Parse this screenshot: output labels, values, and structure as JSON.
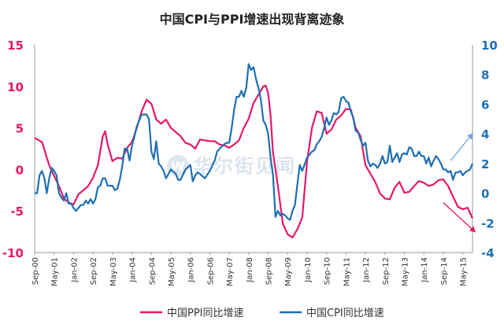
{
  "chart_data": {
    "type": "line",
    "title": "中国CPI与PPI增速出现背离迹象",
    "watermark": "华尔街见闻",
    "left_axis": {
      "min": -10,
      "max": 15,
      "ticks": [
        -10,
        -5,
        0,
        5,
        10,
        15
      ],
      "tick_labels": [
        "-10",
        "-5",
        "0",
        "5",
        "10",
        "15"
      ],
      "color": "#e6186a"
    },
    "right_axis": {
      "min": -4,
      "max": 10,
      "ticks": [
        -4,
        -2,
        0,
        2,
        4,
        6,
        8,
        10
      ],
      "tick_labels": [
        "-4",
        "-2",
        "0",
        "2",
        "4",
        "6",
        "8",
        "10"
      ],
      "color": "#1f6fb2"
    },
    "x_axis": {
      "labels": [
        "Sep-00",
        "May-01",
        "Jan-02",
        "Sep-02",
        "May-03",
        "Jan-04",
        "Sep-04",
        "May-05",
        "Jan-06",
        "Sep-06",
        "May-07",
        "Jan-08",
        "Sep-08",
        "May-09",
        "Jan-10",
        "Sep-10",
        "May-11",
        "Jan-12",
        "Sep-12",
        "May-13",
        "Jan-14",
        "Sep-14",
        "May-15"
      ],
      "label_index": [
        0,
        8,
        16,
        24,
        32,
        40,
        48,
        56,
        64,
        72,
        80,
        88,
        96,
        104,
        112,
        120,
        128,
        136,
        144,
        152,
        160,
        168,
        176
      ]
    },
    "legend": {
      "position": "bottom",
      "items": [
        {
          "label": "中国PPI同比增速",
          "color": "#e6186a"
        },
        {
          "label": "中国CPI同比增速",
          "color": "#1f6fb2"
        }
      ]
    },
    "series": [
      {
        "name": "中国PPI同比增速",
        "axis": "left",
        "color": "#e6186a",
        "keypoints": [
          [
            0,
            3.8
          ],
          [
            3,
            3.3
          ],
          [
            6,
            0.5
          ],
          [
            8,
            -0.8
          ],
          [
            10,
            -2.0
          ],
          [
            12,
            -3.5
          ],
          [
            14,
            -4.0
          ],
          [
            16,
            -4.2
          ],
          [
            18,
            -3.0
          ],
          [
            20,
            -2.5
          ],
          [
            22,
            -2.0
          ],
          [
            24,
            -1.0
          ],
          [
            26,
            0.5
          ],
          [
            28,
            4.0
          ],
          [
            29,
            4.6
          ],
          [
            30,
            3.0
          ],
          [
            32,
            1.0
          ],
          [
            34,
            1.4
          ],
          [
            36,
            1.3
          ],
          [
            38,
            2.6
          ],
          [
            40,
            3.3
          ],
          [
            42,
            5.0
          ],
          [
            44,
            7.0
          ],
          [
            46,
            8.4
          ],
          [
            48,
            7.9
          ],
          [
            50,
            6.0
          ],
          [
            52,
            5.5
          ],
          [
            54,
            6.0
          ],
          [
            56,
            5.0
          ],
          [
            58,
            4.5
          ],
          [
            60,
            4.0
          ],
          [
            62,
            3.2
          ],
          [
            64,
            3.0
          ],
          [
            66,
            2.5
          ],
          [
            68,
            3.6
          ],
          [
            70,
            3.5
          ],
          [
            72,
            3.4
          ],
          [
            74,
            3.4
          ],
          [
            76,
            3.0
          ],
          [
            78,
            2.9
          ],
          [
            80,
            2.6
          ],
          [
            82,
            3.0
          ],
          [
            84,
            3.5
          ],
          [
            86,
            5.0
          ],
          [
            88,
            6.1
          ],
          [
            90,
            8.0
          ],
          [
            92,
            9.0
          ],
          [
            94,
            10.0
          ],
          [
            95,
            10.1
          ],
          [
            96,
            9.2
          ],
          [
            97,
            6.5
          ],
          [
            98,
            2.0
          ],
          [
            100,
            -2.0
          ],
          [
            102,
            -6.5
          ],
          [
            104,
            -7.8
          ],
          [
            106,
            -8.2
          ],
          [
            108,
            -7.2
          ],
          [
            110,
            -5.8
          ],
          [
            112,
            1.0
          ],
          [
            114,
            5.0
          ],
          [
            116,
            7.0
          ],
          [
            118,
            6.8
          ],
          [
            120,
            4.3
          ],
          [
            122,
            4.8
          ],
          [
            124,
            6.0
          ],
          [
            126,
            6.5
          ],
          [
            128,
            7.3
          ],
          [
            130,
            7.2
          ],
          [
            132,
            5.0
          ],
          [
            134,
            4.0
          ],
          [
            136,
            0.5
          ],
          [
            138,
            -0.5
          ],
          [
            140,
            -1.5
          ],
          [
            142,
            -2.9
          ],
          [
            144,
            -3.5
          ],
          [
            146,
            -3.6
          ],
          [
            148,
            -2.2
          ],
          [
            150,
            -1.5
          ],
          [
            152,
            -2.8
          ],
          [
            154,
            -2.7
          ],
          [
            156,
            -2.0
          ],
          [
            158,
            -1.4
          ],
          [
            160,
            -1.6
          ],
          [
            162,
            -2.0
          ],
          [
            164,
            -1.8
          ],
          [
            166,
            -1.3
          ],
          [
            168,
            -1.2
          ],
          [
            170,
            -2.0
          ],
          [
            172,
            -3.3
          ],
          [
            174,
            -4.5
          ],
          [
            176,
            -4.8
          ],
          [
            178,
            -4.6
          ],
          [
            180,
            -5.9
          ]
        ]
      },
      {
        "name": "中国CPI同比增速",
        "axis": "right",
        "color": "#1f6fb2",
        "keypoints": [
          [
            0,
            0.0
          ],
          [
            1,
            0.0
          ],
          [
            2,
            1.2
          ],
          [
            3,
            1.5
          ],
          [
            4,
            1.0
          ],
          [
            5,
            0.0
          ],
          [
            6,
            1.0
          ],
          [
            7,
            1.7
          ],
          [
            8,
            1.5
          ],
          [
            9,
            1.2
          ],
          [
            10,
            0.0
          ],
          [
            11,
            -0.3
          ],
          [
            12,
            -0.5
          ],
          [
            13,
            0.0
          ],
          [
            14,
            -0.7
          ],
          [
            15,
            -0.7
          ],
          [
            16,
            -1.0
          ],
          [
            17,
            -1.2
          ],
          [
            18,
            -1.0
          ],
          [
            19,
            -0.8
          ],
          [
            20,
            -0.8
          ],
          [
            21,
            -0.5
          ],
          [
            22,
            -0.7
          ],
          [
            23,
            -0.4
          ],
          [
            24,
            -0.7
          ],
          [
            25,
            -0.4
          ],
          [
            26,
            0.4
          ],
          [
            27,
            0.5
          ],
          [
            28,
            1.0
          ],
          [
            29,
            1.0
          ],
          [
            30,
            0.5
          ],
          [
            32,
            0.5
          ],
          [
            33,
            0.2
          ],
          [
            34,
            0.3
          ],
          [
            35,
            0.9
          ],
          [
            36,
            1.8
          ],
          [
            37,
            3.0
          ],
          [
            38,
            3.0
          ],
          [
            39,
            2.2
          ],
          [
            40,
            3.2
          ],
          [
            41,
            3.8
          ],
          [
            42,
            4.5
          ],
          [
            44,
            5.3
          ],
          [
            46,
            5.3
          ],
          [
            47,
            5.0
          ],
          [
            48,
            2.8
          ],
          [
            49,
            2.3
          ],
          [
            50,
            3.5
          ],
          [
            51,
            2.0
          ],
          [
            52,
            1.8
          ],
          [
            53,
            1.5
          ],
          [
            54,
            1.0
          ],
          [
            56,
            1.6
          ],
          [
            58,
            1.3
          ],
          [
            59,
            0.9
          ],
          [
            60,
            0.9
          ],
          [
            62,
            1.6
          ],
          [
            64,
            1.9
          ],
          [
            65,
            0.8
          ],
          [
            66,
            1.2
          ],
          [
            67,
            1.4
          ],
          [
            68,
            1.3
          ],
          [
            70,
            1.0
          ],
          [
            72,
            1.5
          ],
          [
            74,
            2.2
          ],
          [
            75,
            2.8
          ],
          [
            76,
            3.0
          ],
          [
            78,
            3.3
          ],
          [
            79,
            3.4
          ],
          [
            80,
            3.4
          ],
          [
            81,
            4.4
          ],
          [
            82,
            5.6
          ],
          [
            83,
            6.5
          ],
          [
            84,
            6.5
          ],
          [
            85,
            6.9
          ],
          [
            86,
            6.5
          ],
          [
            87,
            7.1
          ],
          [
            88,
            8.7
          ],
          [
            89,
            8.3
          ],
          [
            90,
            8.5
          ],
          [
            91,
            7.7
          ],
          [
            92,
            7.1
          ],
          [
            93,
            6.3
          ],
          [
            94,
            4.9
          ],
          [
            95,
            4.6
          ],
          [
            96,
            4.0
          ],
          [
            97,
            2.4
          ],
          [
            98,
            1.2
          ],
          [
            99,
            -1.6
          ],
          [
            100,
            -1.2
          ],
          [
            101,
            -1.5
          ],
          [
            102,
            -1.4
          ],
          [
            103,
            -1.5
          ],
          [
            104,
            -1.7
          ],
          [
            105,
            -1.8
          ],
          [
            106,
            -1.2
          ],
          [
            107,
            -0.8
          ],
          [
            108,
            0.6
          ],
          [
            109,
            1.9
          ],
          [
            110,
            1.5
          ],
          [
            112,
            2.4
          ],
          [
            114,
            2.8
          ],
          [
            115,
            2.9
          ],
          [
            116,
            3.3
          ],
          [
            117,
            3.5
          ],
          [
            118,
            3.8
          ],
          [
            119,
            4.4
          ],
          [
            120,
            5.1
          ],
          [
            121,
            4.6
          ],
          [
            122,
            4.9
          ],
          [
            123,
            5.4
          ],
          [
            124,
            5.3
          ],
          [
            125,
            5.5
          ],
          [
            126,
            6.4
          ],
          [
            127,
            6.5
          ],
          [
            128,
            6.2
          ],
          [
            129,
            6.1
          ],
          [
            130,
            5.5
          ],
          [
            131,
            5.1
          ],
          [
            132,
            4.2
          ],
          [
            133,
            4.1
          ],
          [
            134,
            3.6
          ],
          [
            135,
            3.2
          ],
          [
            136,
            3.4
          ],
          [
            137,
            2.2
          ],
          [
            138,
            1.8
          ],
          [
            139,
            2.0
          ],
          [
            140,
            1.9
          ],
          [
            141,
            1.7
          ],
          [
            142,
            2.0
          ],
          [
            143,
            2.5
          ],
          [
            144,
            2.0
          ],
          [
            145,
            2.1
          ],
          [
            146,
            3.2
          ],
          [
            147,
            2.1
          ],
          [
            148,
            2.4
          ],
          [
            149,
            2.7
          ],
          [
            150,
            2.1
          ],
          [
            151,
            2.6
          ],
          [
            152,
            2.7
          ],
          [
            153,
            2.6
          ],
          [
            154,
            3.1
          ],
          [
            155,
            3.0
          ],
          [
            156,
            2.5
          ],
          [
            157,
            2.5
          ],
          [
            158,
            2.8
          ],
          [
            159,
            2.5
          ],
          [
            160,
            2.5
          ],
          [
            161,
            2.0
          ],
          [
            162,
            2.4
          ],
          [
            163,
            1.8
          ],
          [
            164,
            2.2
          ],
          [
            165,
            2.5
          ],
          [
            166,
            2.3
          ],
          [
            167,
            2.0
          ],
          [
            168,
            1.6
          ],
          [
            169,
            1.6
          ],
          [
            170,
            1.4
          ],
          [
            171,
            1.5
          ],
          [
            172,
            0.9
          ],
          [
            173,
            1.4
          ],
          [
            174,
            1.4
          ],
          [
            175,
            1.5
          ],
          [
            176,
            1.2
          ],
          [
            177,
            1.4
          ],
          [
            178,
            1.5
          ],
          [
            179,
            1.6
          ],
          [
            180,
            2.0
          ]
        ]
      }
    ],
    "annotations": [
      {
        "type": "arrow",
        "axis": "right",
        "color": "#6fa8dc",
        "from": [
          171,
          2.2
        ],
        "to": [
          180,
          4.0
        ]
      },
      {
        "type": "arrow",
        "axis": "left",
        "color": "#e6186a",
        "from": [
          168,
          -4.0
        ],
        "to": [
          181,
          -7.5
        ]
      }
    ],
    "grid": false
  }
}
